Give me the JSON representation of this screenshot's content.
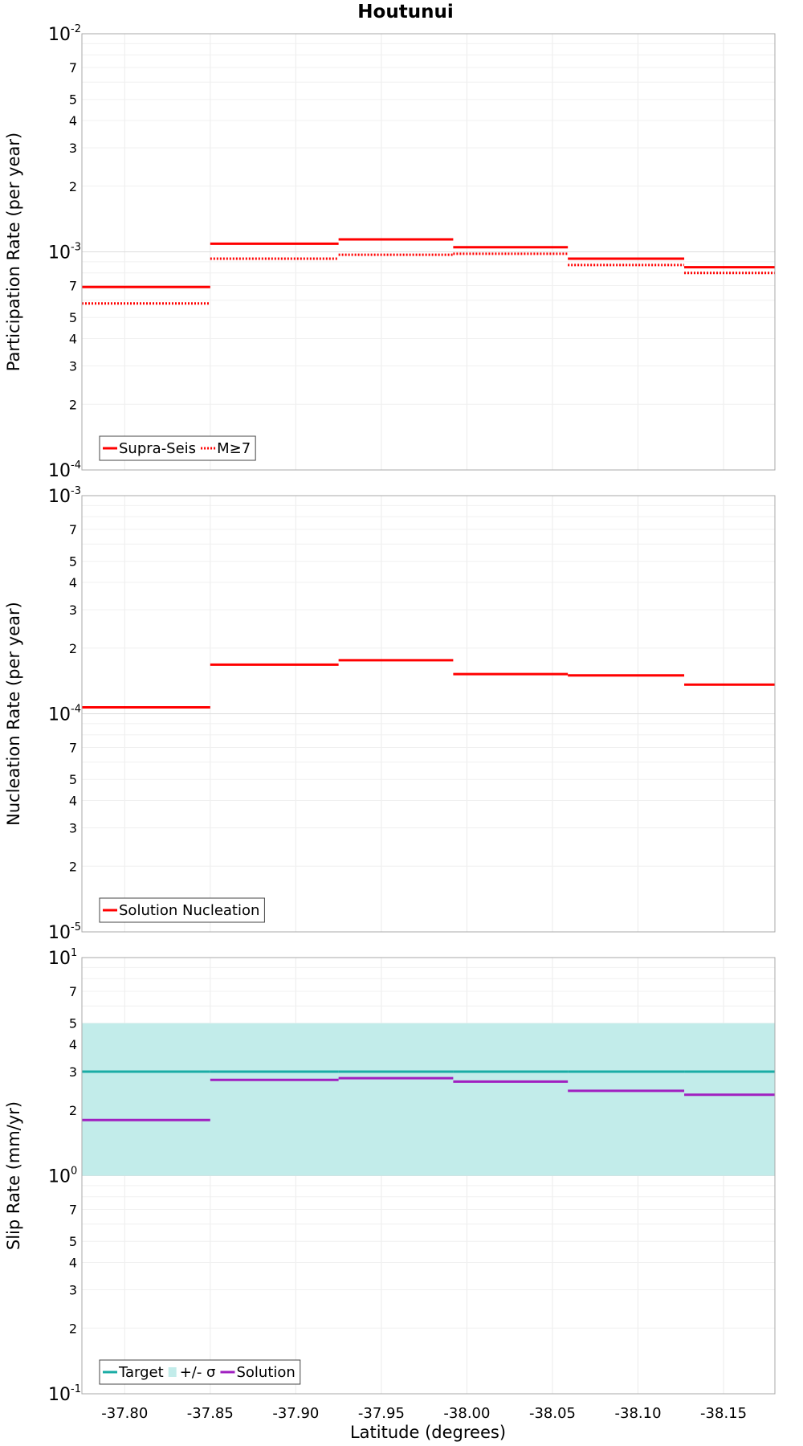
{
  "chart_data": {
    "title": "Houtunui",
    "xlabel": "Latitude (degrees)",
    "xlim": [
      -37.775,
      -38.18
    ],
    "xticks": [
      -37.8,
      -37.85,
      -37.9,
      -37.95,
      -38.0,
      -38.05,
      -38.1,
      -38.15
    ],
    "xtick_labels": [
      "-37.80",
      "-37.85",
      "-37.90",
      "-37.95",
      "-38.00",
      "-38.05",
      "-38.10",
      "-38.15"
    ],
    "bins": [
      -37.775,
      -37.85,
      -37.925,
      -37.992,
      -38.059,
      -38.127,
      -38.18
    ],
    "grid": true,
    "panels": [
      {
        "type": "line",
        "step": true,
        "ylabel": "Participation Rate (per year)",
        "yscale": "log",
        "ylim": [
          0.0001,
          0.01
        ],
        "legend": "bottom-left",
        "series": [
          {
            "name": "Supra-Seis",
            "color": "#ff0000",
            "style": "solid",
            "values": [
              0.00069,
              0.00109,
              0.00114,
              0.00105,
              0.00093,
              0.00085
            ]
          },
          {
            "name": "M≥7",
            "color": "#ff0000",
            "style": "dotted",
            "values": [
              0.00058,
              0.00093,
              0.00097,
              0.00098,
              0.00087,
              0.0008
            ]
          }
        ]
      },
      {
        "type": "line",
        "step": true,
        "ylabel": "Nucleation Rate (per year)",
        "yscale": "log",
        "ylim": [
          1e-05,
          0.001
        ],
        "legend": "bottom-left",
        "series": [
          {
            "name": "Solution Nucleation",
            "color": "#ff0000",
            "style": "solid",
            "values": [
              0.000107,
              0.000168,
              0.000176,
              0.000152,
              0.00015,
              0.000136
            ]
          }
        ]
      },
      {
        "type": "line",
        "step": true,
        "ylabel": "Slip Rate (mm/yr)",
        "yscale": "log",
        "ylim": [
          0.1,
          10
        ],
        "legend": "bottom-left",
        "band": {
          "name": "+/- σ",
          "color": "#c2ecea",
          "lower": 1.0,
          "upper": 5.0
        },
        "series": [
          {
            "name": "Target",
            "color": "#1aaca5",
            "style": "solid",
            "values": [
              3.0,
              3.0,
              3.0,
              3.0,
              3.0,
              3.0
            ]
          },
          {
            "name": "Solution",
            "color": "#a020c0",
            "style": "solid",
            "values": [
              1.8,
              2.75,
              2.8,
              2.7,
              2.45,
              2.35
            ]
          }
        ]
      }
    ]
  }
}
